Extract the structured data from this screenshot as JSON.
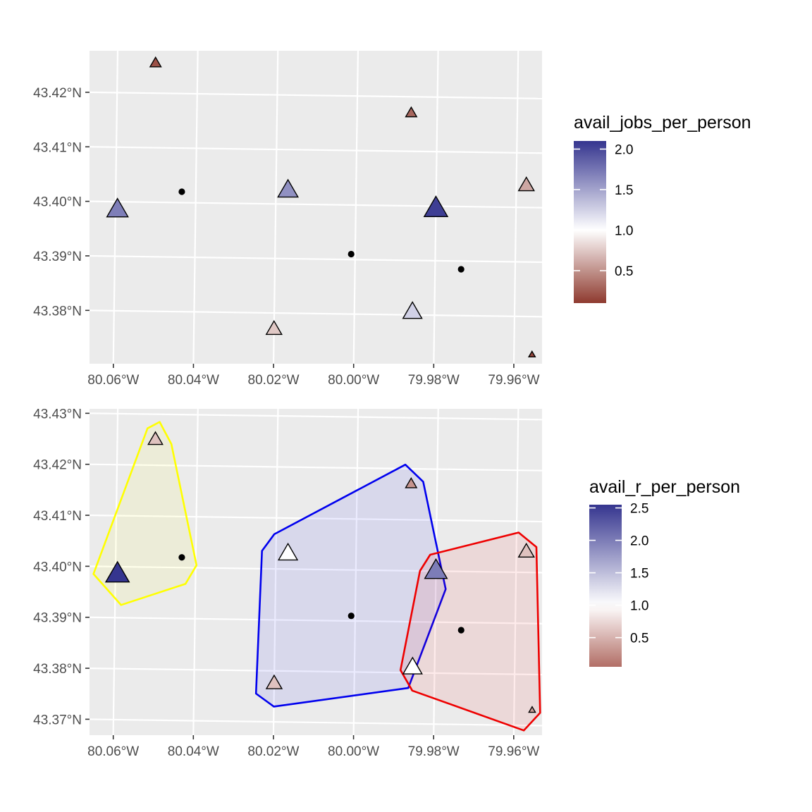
{
  "chart_data": [
    {
      "type": "scatter",
      "title": "",
      "xlabel": "",
      "ylabel": "",
      "xlim": [
        -80.0665,
        -79.9535
      ],
      "ylim": [
        43.3708,
        43.4282
      ],
      "grid": true,
      "x_ticks": [
        {
          "value": -80.06,
          "label": "80.06°W"
        },
        {
          "value": -80.04,
          "label": "80.04°W"
        },
        {
          "value": -80.02,
          "label": "80.02°W"
        },
        {
          "value": -80.0,
          "label": "80.00°W"
        },
        {
          "value": -79.98,
          "label": "79.98°W"
        },
        {
          "value": -79.96,
          "label": "79.96°W"
        }
      ],
      "y_ticks": [
        {
          "value": 43.38,
          "label": "43.38°N"
        },
        {
          "value": 43.39,
          "label": "43.39°N"
        },
        {
          "value": 43.4,
          "label": "43.40°N"
        },
        {
          "value": 43.41,
          "label": "43.41°N"
        },
        {
          "value": 43.42,
          "label": "43.42°N"
        }
      ],
      "legend": {
        "title": "avail_jobs_per_person",
        "position": "right",
        "min": 0.1,
        "max": 2.1,
        "mid": 1.0,
        "breaks": [
          {
            "value": 2.0,
            "label": "2.0"
          },
          {
            "value": 1.5,
            "label": "1.5"
          },
          {
            "value": 1.0,
            "label": "1.0"
          },
          {
            "value": 0.5,
            "label": "0.5"
          }
        ],
        "colors": {
          "low": "#8e3a2f",
          "mid": "#ffffff",
          "high": "#35358f"
        }
      },
      "triangles": [
        {
          "lon": -80.0505,
          "lat": 43.4255,
          "value": 0.2,
          "size": 0.3
        },
        {
          "lon": -80.0595,
          "lat": 43.3985,
          "value": 1.7,
          "size": 0.75
        },
        {
          "lon": -80.017,
          "lat": 43.4025,
          "value": 1.6,
          "size": 0.7
        },
        {
          "lon": -80.02,
          "lat": 43.377,
          "value": 0.75,
          "size": 0.5
        },
        {
          "lon": -79.9865,
          "lat": 43.417,
          "value": 0.3,
          "size": 0.3
        },
        {
          "lon": -79.9855,
          "lat": 43.3805,
          "value": 1.25,
          "size": 0.65
        },
        {
          "lon": -79.98,
          "lat": 43.3995,
          "value": 2.05,
          "size": 0.85
        },
        {
          "lon": -79.9575,
          "lat": 43.404,
          "value": 0.6,
          "size": 0.5
        },
        {
          "lon": -79.9555,
          "lat": 43.373,
          "value": 0.15,
          "size": 0.1
        }
      ],
      "points": [
        {
          "lon": -80.0435,
          "lat": 43.402
        },
        {
          "lon": -80.001,
          "lat": 43.391
        },
        {
          "lon": -79.9735,
          "lat": 43.3885
        }
      ]
    },
    {
      "type": "scatter",
      "title": "",
      "xlabel": "",
      "ylabel": "",
      "xlim": [
        -80.0665,
        -79.9535
      ],
      "ylim": [
        43.3675,
        43.4315
      ],
      "grid": true,
      "x_ticks": [
        {
          "value": -80.06,
          "label": "80.06°W"
        },
        {
          "value": -80.04,
          "label": "80.04°W"
        },
        {
          "value": -80.02,
          "label": "80.02°W"
        },
        {
          "value": -80.0,
          "label": "80.00°W"
        },
        {
          "value": -79.98,
          "label": "79.98°W"
        },
        {
          "value": -79.96,
          "label": "79.96°W"
        }
      ],
      "y_ticks": [
        {
          "value": 43.37,
          "label": "43.37°N"
        },
        {
          "value": 43.38,
          "label": "43.38°N"
        },
        {
          "value": 43.39,
          "label": "43.39°N"
        },
        {
          "value": 43.4,
          "label": "43.40°N"
        },
        {
          "value": 43.41,
          "label": "43.41°N"
        },
        {
          "value": 43.42,
          "label": "43.42°N"
        },
        {
          "value": 43.43,
          "label": "43.43°N"
        }
      ],
      "legend": {
        "title": "avail_r_per_person",
        "position": "right",
        "min": 0.05,
        "max": 2.55,
        "mid": 1.0,
        "breaks": [
          {
            "value": 2.5,
            "label": "2.5"
          },
          {
            "value": 2.0,
            "label": "2.0"
          },
          {
            "value": 1.5,
            "label": "1.5"
          },
          {
            "value": 1.0,
            "label": "1.0"
          },
          {
            "value": 0.5,
            "label": "0.5"
          }
        ],
        "colors": {
          "low": "#b26e66",
          "mid": "#ffffff",
          "high": "#35358f"
        }
      },
      "hulls": [
        {
          "stroke": "#ffff00",
          "fill": "#ffff00",
          "points": [
            [
              -80.0495,
              43.4285
            ],
            [
              -80.0465,
              43.4242
            ],
            [
              -80.0398,
              43.4005
            ],
            [
              -80.0425,
              43.3968
            ],
            [
              -80.0585,
              43.3925
            ],
            [
              -80.0655,
              43.3985
            ],
            [
              -80.0525,
              43.4272
            ]
          ]
        },
        {
          "stroke": "#0000ee",
          "fill": "#0000ee",
          "points": [
            [
              -79.988,
              43.4208
            ],
            [
              -79.9835,
              43.4175
            ],
            [
              -79.9775,
              43.3965
            ],
            [
              -79.9865,
              43.377
            ],
            [
              -80.02,
              43.373
            ],
            [
              -80.0245,
              43.3755
            ],
            [
              -80.0235,
              43.4035
            ],
            [
              -80.0205,
              43.4068
            ]
          ]
        },
        {
          "stroke": "#ee0000",
          "fill": "#ee0000",
          "points": [
            [
              -79.9595,
              43.4078
            ],
            [
              -79.955,
              43.405
            ],
            [
              -79.9535,
              43.3725
            ],
            [
              -79.9575,
              43.369
            ],
            [
              -79.9855,
              43.3765
            ],
            [
              -79.9885,
              43.3805
            ],
            [
              -79.984,
              43.4
            ],
            [
              -79.9815,
              43.4032
            ]
          ]
        }
      ],
      "triangles": [
        {
          "lon": -80.0505,
          "lat": 43.425,
          "value": 0.6,
          "size": 0.45
        },
        {
          "lon": -80.0595,
          "lat": 43.3985,
          "value": 2.55,
          "size": 0.85
        },
        {
          "lon": -80.017,
          "lat": 43.403,
          "value": 1.0,
          "size": 0.65
        },
        {
          "lon": -80.02,
          "lat": 43.3775,
          "value": 0.6,
          "size": 0.5
        },
        {
          "lon": -79.9865,
          "lat": 43.417,
          "value": 0.3,
          "size": 0.3
        },
        {
          "lon": -79.9855,
          "lat": 43.381,
          "value": 1.0,
          "size": 0.65
        },
        {
          "lon": -79.98,
          "lat": 43.4,
          "value": 2.0,
          "size": 0.8
        },
        {
          "lon": -79.9575,
          "lat": 43.404,
          "value": 0.6,
          "size": 0.5
        },
        {
          "lon": -79.9555,
          "lat": 43.373,
          "value": 0.35,
          "size": 0.1
        }
      ],
      "points": [
        {
          "lon": -80.0435,
          "lat": 43.402
        },
        {
          "lon": -80.001,
          "lat": 43.391
        },
        {
          "lon": -79.9735,
          "lat": 43.3885
        }
      ]
    }
  ]
}
